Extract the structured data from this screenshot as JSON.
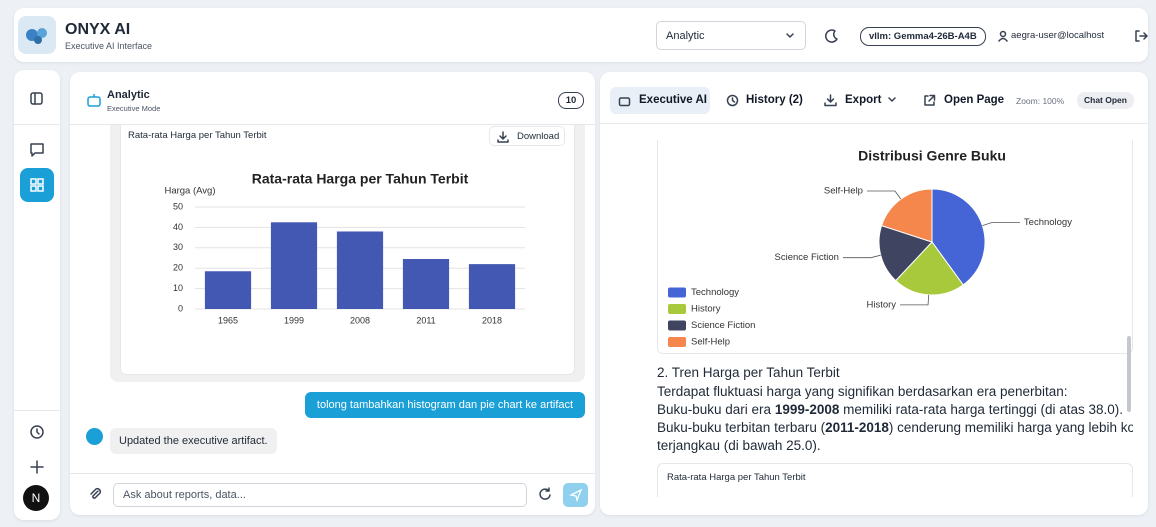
{
  "header": {
    "title": "ONYX AI",
    "subtitle": "Executive AI Interface",
    "mode": "Analytic",
    "model": "vllm: Gemma4-26B-A4B",
    "user": "aegra-user@localhost"
  },
  "sidebar": {
    "avatar": "N"
  },
  "chat": {
    "title": "Analytic",
    "subtitle": "Executive Mode",
    "badge": "10",
    "artifact": {
      "title": "Rata-rata Harga per Tahun Terbit",
      "download": "Download"
    },
    "messages": [
      "tolong tambahkan histogram dan pie chart ke artifact",
      "Updated the executive artifact."
    ],
    "input_placeholder": "Ask about reports, data..."
  },
  "artifact_panel": {
    "tabs": [
      "Executive AI",
      "History (2)",
      "Export",
      "Open Page"
    ],
    "zoom": "Zoom: 100%",
    "status": "Chat Open",
    "section_heading": "2. Tren Harga per Tahun Terbit",
    "lines": [
      [
        "Terdapat fluktuasi harga yang signifikan berdasarkan era penerbitan:"
      ],
      [
        "Buku-buku dari era ",
        "1999-2008",
        " memiliki rata-rata harga tertinggi (di atas 38.0)."
      ],
      [
        "Buku-buku terbitan terbaru (",
        "2011-2018",
        ") cenderung memiliki harga yang lebih komp"
      ],
      [
        "terjangkau (di bawah 25.0)."
      ]
    ],
    "next_card_title": "Rata-rata Harga per Tahun Terbit"
  },
  "chart_data": [
    {
      "type": "bar",
      "title": "Rata-rata Harga per Tahun Terbit",
      "y_label": "Harga (Avg)",
      "categories": [
        "1965",
        "1999",
        "2008",
        "2011",
        "2018"
      ],
      "values": [
        18.5,
        42.5,
        38,
        24.5,
        22
      ],
      "color": "#4358b3",
      "ylim": [
        0,
        50
      ],
      "yticks": [
        0,
        10,
        20,
        30,
        40,
        50
      ],
      "grid": true
    },
    {
      "type": "pie",
      "title": "Distribusi Genre Buku",
      "categories": [
        "Technology",
        "History",
        "Science Fiction",
        "Self-Help"
      ],
      "values": [
        40,
        22,
        18,
        20
      ],
      "colors": [
        "#4564d6",
        "#a9c93c",
        "#3f4461",
        "#f6874c"
      ],
      "legend": "bottom-left"
    }
  ]
}
